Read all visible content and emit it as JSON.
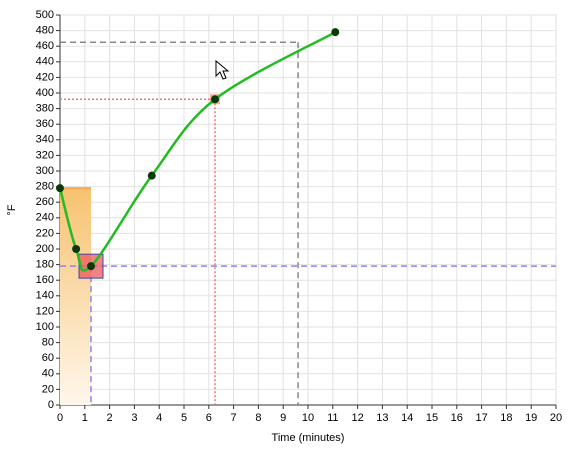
{
  "chart_data": {
    "type": "line",
    "x_label": "Time (minutes)",
    "y_label": "°F",
    "x": [
      0,
      0.65,
      1.25,
      3.7,
      6.25,
      11.1
    ],
    "series": [
      {
        "values": [
          278,
          200,
          178,
          294,
          392,
          478
        ],
        "color": "#22bb22",
        "marker_color": "#0a3a0a"
      }
    ],
    "xlim": [
      0,
      20
    ],
    "xticks": [
      0,
      1,
      2,
      3,
      4,
      5,
      6,
      7,
      8,
      9,
      10,
      11,
      12,
      13,
      14,
      15,
      16,
      17,
      18,
      19,
      20
    ],
    "ylim": [
      0,
      500
    ],
    "yticks": [
      0,
      20,
      40,
      60,
      80,
      100,
      120,
      140,
      160,
      180,
      200,
      220,
      240,
      260,
      280,
      300,
      320,
      340,
      360,
      380,
      400,
      420,
      440,
      460,
      480,
      500
    ],
    "grid": true,
    "guides": [
      {
        "x": 9.6,
        "y": 465,
        "color": "#888888",
        "dash": "6,4"
      },
      {
        "x": 6.25,
        "y": 392,
        "color": "#ee7777",
        "dash": "2,2"
      },
      {
        "x": 1.25,
        "y": 178,
        "color": "#8888ee",
        "dash": "6,4"
      }
    ]
  }
}
